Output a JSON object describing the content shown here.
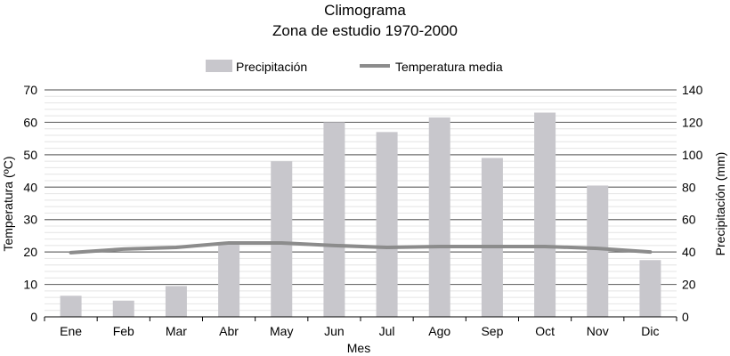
{
  "chart_data": {
    "type": "bar+line",
    "title": "Climograma",
    "subtitle": "Zona de estudio 1970-2000",
    "xlabel": "Mes",
    "ylabel_left": "Temperatura (ºC)",
    "ylabel_right": "Precipitación (mm)",
    "ylim_left": [
      0,
      70
    ],
    "ylim_right": [
      0,
      140
    ],
    "yticks_left": [
      "0",
      "10",
      "20",
      "30",
      "40",
      "50",
      "60",
      "70"
    ],
    "yticks_right": [
      "0",
      "20",
      "40",
      "60",
      "80",
      "100",
      "120",
      "140"
    ],
    "grid": true,
    "legend_position": "top",
    "categories": [
      "Ene",
      "Feb",
      "Mar",
      "Abr",
      "May",
      "Jun",
      "Jul",
      "Ago",
      "Sep",
      "Oct",
      "Nov",
      "Dic"
    ],
    "series": [
      {
        "name": "Precipitación",
        "type": "bar",
        "axis": "right",
        "color": "#c8c7cc",
        "values": [
          13,
          10,
          19,
          45,
          96,
          120,
          114,
          123,
          98,
          126,
          81,
          35
        ]
      },
      {
        "name": "Temperatura media",
        "type": "line",
        "axis": "left",
        "color": "#8c8c8c",
        "values": [
          19.8,
          20.9,
          21.4,
          22.8,
          22.8,
          22.0,
          21.4,
          21.7,
          21.7,
          21.7,
          21.1,
          20.0
        ]
      }
    ]
  }
}
